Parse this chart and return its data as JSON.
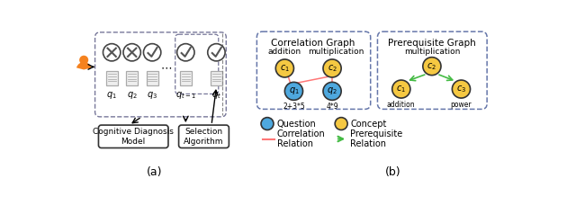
{
  "fig_width": 6.4,
  "fig_height": 2.48,
  "dpi": 100,
  "bg_color": "#ffffff",
  "section_a_label": "(a)",
  "section_b_label": "(b)",
  "corr_graph_title": "Correlation Graph",
  "prereq_graph_title": "Prerequisite Graph",
  "concept_color": "#F5C842",
  "question_color": "#4EA8DE",
  "corr_edge_color": "#FF7777",
  "prereq_edge_color": "#44BB44",
  "node_border_color": "#333333",
  "dashed_box_color": "#6677AA",
  "person_color": "#F5821F"
}
